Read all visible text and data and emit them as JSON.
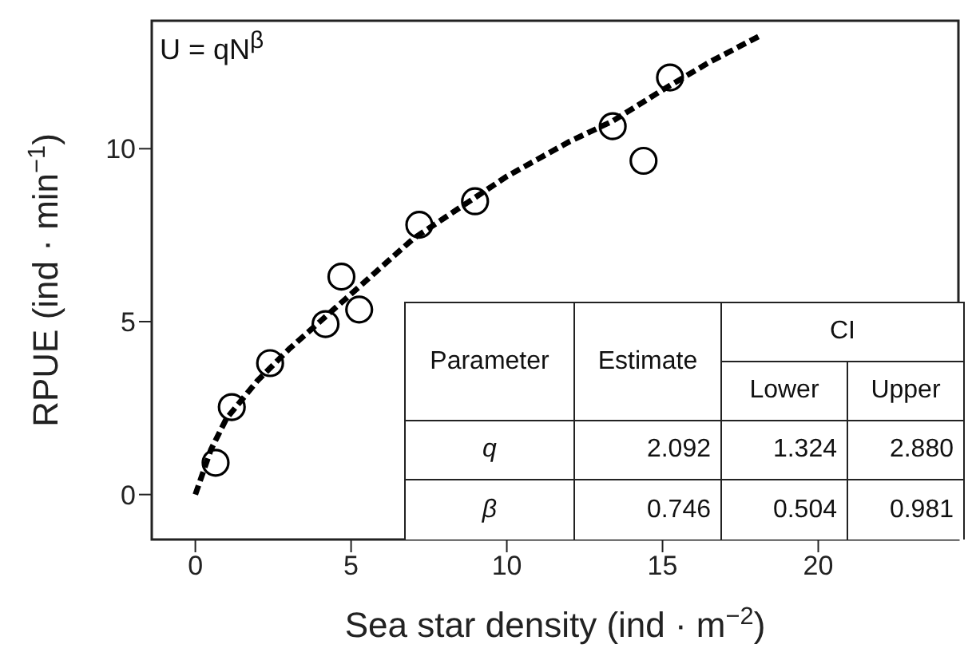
{
  "chart_data": {
    "type": "scatter",
    "xlabel": "Sea star density (ind · m$^{−2}$)",
    "ylabel": "RPUE (ind · min$^{−1}$)",
    "xlim": [
      -1.4,
      24.5
    ],
    "xticks": [
      0,
      5,
      10,
      15,
      20
    ],
    "ylim": [
      -1.3,
      13.7
    ],
    "yticks": [
      0,
      5,
      10
    ],
    "series": [
      {
        "type": "line",
        "color": "#000000",
        "line_style": "dashed",
        "x": [
          0,
          0.5,
          1,
          2,
          3,
          4,
          5,
          6,
          7,
          8,
          9,
          10,
          12,
          13.4,
          15,
          16.5,
          18.2
        ],
        "values": [
          0,
          1.3,
          2.2,
          3.3,
          4.2,
          5.0,
          5.8,
          6.6,
          7.4,
          8.0,
          8.6,
          9.2,
          10.2,
          10.8,
          11.7,
          12.5,
          13.3
        ]
      },
      {
        "marker": "circle",
        "color": "#000000",
        "x": [
          0.65,
          1.17,
          2.4,
          4.18,
          5.26,
          4.69,
          7.19,
          8.98,
          13.4,
          14.39,
          15.24
        ],
        "values": [
          0.92,
          2.53,
          3.8,
          4.93,
          5.35,
          6.3,
          7.8,
          8.48,
          10.65,
          9.65,
          12.06
        ]
      }
    ],
    "annotations": [
      "U = qN$^{β}$",
      "Parameter",
      "Estimate",
      "CI",
      "Lower",
      "Upper",
      "q",
      "2.092",
      "1.324",
      "2.880",
      "β",
      "0.746",
      "0.504",
      "0.981"
    ]
  }
}
